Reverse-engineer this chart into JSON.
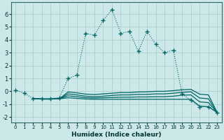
{
  "xlabel": "Humidex (Indice chaleur)",
  "background_color": "#cce8e8",
  "grid_color": "#aacccc",
  "line_color": "#006666",
  "xlim": [
    -0.5,
    23.5
  ],
  "ylim": [
    -2.4,
    6.9
  ],
  "x_ticks": [
    0,
    1,
    2,
    3,
    4,
    5,
    6,
    7,
    8,
    9,
    10,
    11,
    12,
    13,
    14,
    15,
    16,
    17,
    18,
    19,
    20,
    21,
    22,
    23
  ],
  "y_ticks": [
    -2,
    -1,
    0,
    1,
    2,
    3,
    4,
    5,
    6
  ],
  "main_series": {
    "x": [
      0,
      1,
      2,
      3,
      4,
      5,
      6,
      7,
      8,
      9,
      10,
      11,
      12,
      13,
      14,
      15,
      16,
      17,
      18,
      19,
      20,
      21,
      22,
      23
    ],
    "y": [
      0.1,
      -0.15,
      -0.55,
      -0.6,
      -0.55,
      -0.5,
      1.0,
      1.25,
      4.5,
      4.35,
      5.5,
      6.35,
      4.5,
      4.65,
      3.1,
      4.65,
      3.65,
      3.0,
      3.2,
      -0.2,
      -0.7,
      -1.2,
      -1.2,
      -1.65
    ]
  },
  "flat_series": [
    {
      "x": [
        2,
        3,
        4,
        5,
        6,
        7,
        8,
        9,
        10,
        11,
        12,
        13,
        14,
        15,
        16,
        17,
        18,
        19,
        20,
        21,
        22,
        23
      ],
      "y": [
        -0.55,
        -0.6,
        -0.6,
        -0.58,
        -0.5,
        -0.55,
        -0.6,
        -0.62,
        -0.62,
        -0.62,
        -0.62,
        -0.62,
        -0.62,
        -0.62,
        -0.62,
        -0.62,
        -0.62,
        -0.62,
        -0.62,
        -1.15,
        -1.2,
        -1.65
      ]
    },
    {
      "x": [
        2,
        3,
        4,
        5,
        6,
        7,
        8,
        9,
        10,
        11,
        12,
        13,
        14,
        15,
        16,
        17,
        18,
        19,
        20,
        21,
        22,
        23
      ],
      "y": [
        -0.55,
        -0.6,
        -0.6,
        -0.58,
        -0.35,
        -0.42,
        -0.5,
        -0.52,
        -0.5,
        -0.48,
        -0.46,
        -0.46,
        -0.44,
        -0.44,
        -0.42,
        -0.42,
        -0.38,
        -0.3,
        -0.28,
        -0.82,
        -0.88,
        -1.65
      ]
    },
    {
      "x": [
        2,
        3,
        4,
        5,
        6,
        7,
        8,
        9,
        10,
        11,
        12,
        13,
        14,
        15,
        16,
        17,
        18,
        19,
        20,
        21,
        22,
        23
      ],
      "y": [
        -0.55,
        -0.6,
        -0.6,
        -0.58,
        -0.2,
        -0.28,
        -0.38,
        -0.42,
        -0.38,
        -0.32,
        -0.28,
        -0.28,
        -0.24,
        -0.24,
        -0.2,
        -0.2,
        -0.15,
        -0.08,
        -0.04,
        -0.52,
        -0.58,
        -1.65
      ]
    },
    {
      "x": [
        2,
        3,
        4,
        5,
        6,
        7,
        8,
        9,
        10,
        11,
        12,
        13,
        14,
        15,
        16,
        17,
        18,
        19,
        20,
        21,
        22,
        23
      ],
      "y": [
        -0.55,
        -0.6,
        -0.6,
        -0.58,
        -0.05,
        -0.12,
        -0.22,
        -0.25,
        -0.2,
        -0.15,
        -0.1,
        -0.1,
        -0.05,
        -0.04,
        -0.0,
        0.0,
        0.05,
        0.12,
        0.15,
        -0.22,
        -0.28,
        -1.65
      ]
    }
  ]
}
